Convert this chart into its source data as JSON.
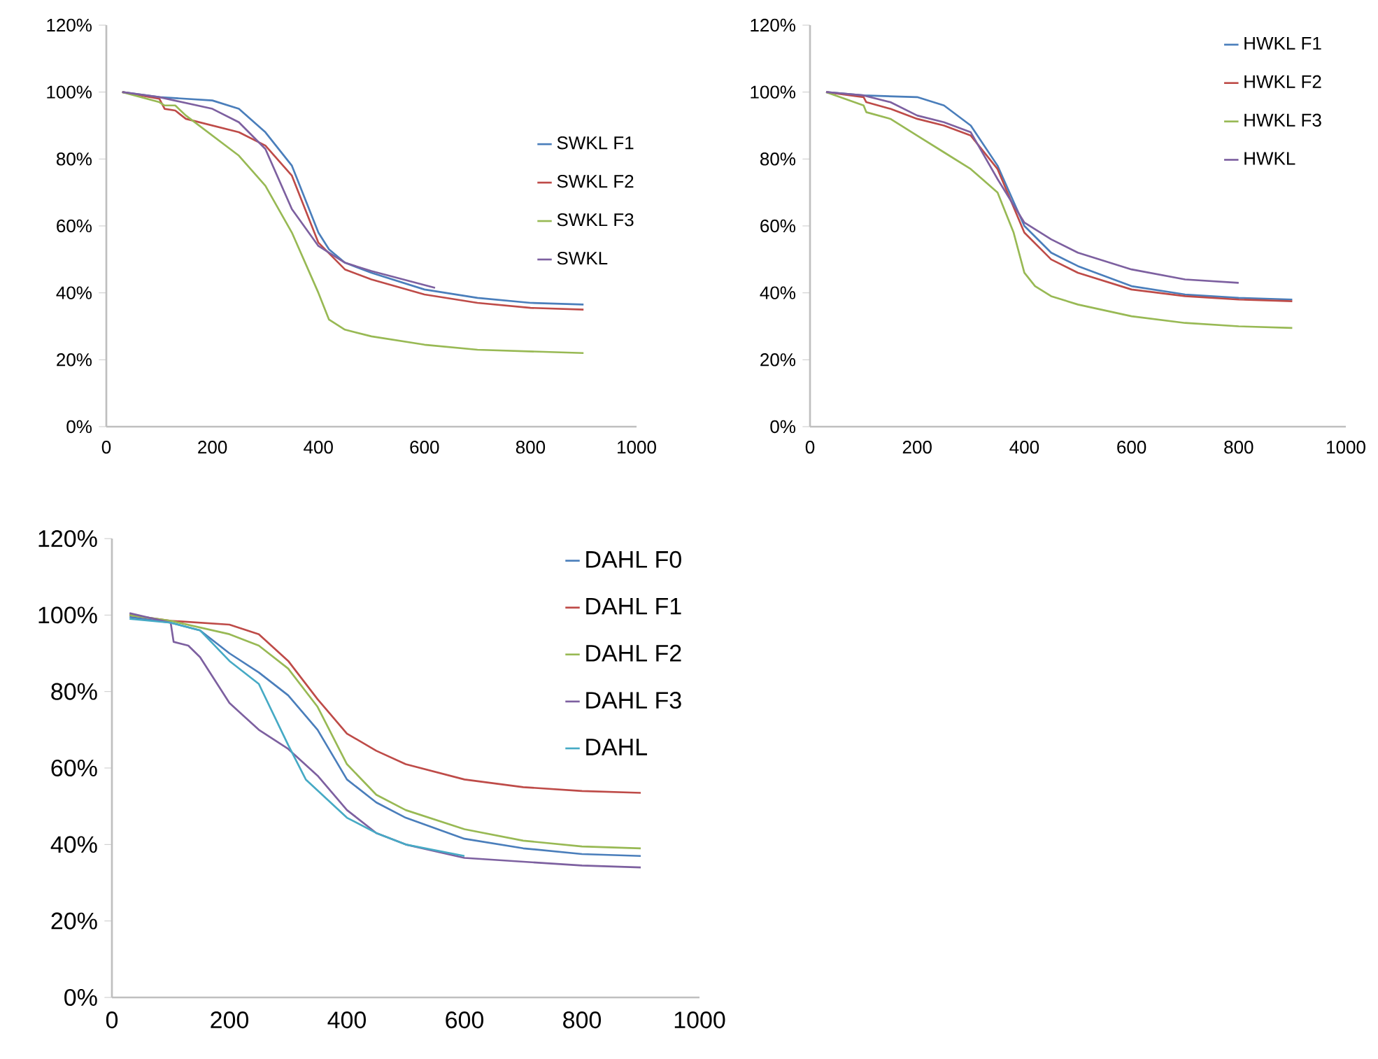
{
  "chart_data": [
    {
      "type": "line",
      "xlim": [
        0,
        1000
      ],
      "xticks": [
        0,
        200,
        400,
        600,
        800,
        1000
      ],
      "ylim": [
        0,
        120
      ],
      "yticks": [
        {
          "value": 0,
          "label": "0%"
        },
        {
          "value": 20,
          "label": "20%"
        },
        {
          "value": 40,
          "label": "40%"
        },
        {
          "value": 60,
          "label": "60%"
        },
        {
          "value": 80,
          "label": "80%"
        },
        {
          "value": 100,
          "label": "100%"
        },
        {
          "value": 120,
          "label": "120%"
        }
      ],
      "legend": "right",
      "grid": false,
      "series": [
        {
          "name": "SWKL F1",
          "color": "#4a7ebb",
          "x": [
            30,
            100,
            200,
            250,
            300,
            350,
            400,
            420,
            450,
            500,
            600,
            700,
            800,
            900
          ],
          "values": [
            100,
            98.5,
            97.5,
            95,
            88,
            78,
            58,
            53,
            49,
            46,
            41,
            38.5,
            37,
            36.5
          ]
        },
        {
          "name": "SWKL F2",
          "color": "#be4b48",
          "x": [
            30,
            100,
            110,
            130,
            150,
            200,
            250,
            300,
            350,
            400,
            450,
            500,
            600,
            700,
            800,
            900
          ],
          "values": [
            100,
            98,
            95,
            94.5,
            92,
            90,
            88,
            84,
            75,
            55,
            47,
            44,
            39.5,
            37,
            35.5,
            35
          ]
        },
        {
          "name": "SWKL F3",
          "color": "#98b954",
          "x": [
            30,
            100,
            110,
            130,
            150,
            200,
            250,
            300,
            350,
            400,
            420,
            450,
            500,
            600,
            700,
            800,
            900
          ],
          "values": [
            100,
            97,
            96,
            96,
            93,
            87,
            81,
            72,
            58,
            40,
            32,
            29,
            27,
            24.5,
            23,
            22.5,
            22
          ]
        },
        {
          "name": "SWKL",
          "color": "#7d60a0",
          "x": [
            30,
            100,
            200,
            250,
            300,
            350,
            400,
            450,
            500,
            620
          ],
          "values": [
            100,
            98.5,
            95,
            91,
            83,
            65,
            54,
            49,
            46.5,
            41.5
          ]
        }
      ]
    },
    {
      "type": "line",
      "xlim": [
        0,
        1000
      ],
      "xticks": [
        0,
        200,
        400,
        600,
        800,
        1000
      ],
      "ylim": [
        0,
        120
      ],
      "yticks": [
        {
          "value": 0,
          "label": "0%"
        },
        {
          "value": 20,
          "label": "20%"
        },
        {
          "value": 40,
          "label": "40%"
        },
        {
          "value": 60,
          "label": "60%"
        },
        {
          "value": 80,
          "label": "80%"
        },
        {
          "value": 100,
          "label": "100%"
        },
        {
          "value": 120,
          "label": "120%"
        }
      ],
      "legend": "top right",
      "grid": false,
      "series": [
        {
          "name": "HWKL F1",
          "color": "#4a7ebb",
          "x": [
            30,
            100,
            200,
            250,
            300,
            350,
            400,
            450,
            500,
            600,
            700,
            800,
            900
          ],
          "values": [
            100,
            99,
            98.5,
            96,
            90,
            78,
            60,
            52,
            48,
            42,
            39.5,
            38.5,
            38
          ]
        },
        {
          "name": "HWKL F2",
          "color": "#be4b48",
          "x": [
            30,
            100,
            105,
            150,
            200,
            250,
            300,
            350,
            400,
            450,
            500,
            600,
            700,
            800,
            900
          ],
          "values": [
            100,
            98.5,
            97,
            95,
            92,
            90,
            87,
            77,
            58,
            50,
            46,
            41,
            39,
            38,
            37.5
          ]
        },
        {
          "name": "HWKL F3",
          "color": "#98b954",
          "x": [
            30,
            100,
            105,
            150,
            200,
            250,
            300,
            350,
            380,
            400,
            420,
            450,
            500,
            600,
            700,
            800,
            900
          ],
          "values": [
            100,
            96,
            94,
            92,
            87,
            82,
            77,
            70,
            58,
            46,
            42,
            39,
            36.5,
            33,
            31,
            30,
            29.5
          ]
        },
        {
          "name": "HWKL",
          "color": "#7d60a0",
          "x": [
            30,
            100,
            150,
            200,
            250,
            300,
            350,
            400,
            450,
            500,
            600,
            700,
            800
          ],
          "values": [
            100,
            99,
            97,
            93,
            91,
            88,
            74,
            61,
            56,
            52,
            47,
            44,
            43
          ]
        }
      ]
    },
    {
      "type": "line",
      "xlim": [
        0,
        1000
      ],
      "xticks": [
        0,
        200,
        400,
        600,
        800,
        1000
      ],
      "ylim": [
        0,
        120
      ],
      "yticks": [
        {
          "value": 0,
          "label": "0%"
        },
        {
          "value": 20,
          "label": "20%"
        },
        {
          "value": 40,
          "label": "40%"
        },
        {
          "value": 60,
          "label": "60%"
        },
        {
          "value": 80,
          "label": "80%"
        },
        {
          "value": 100,
          "label": "100%"
        },
        {
          "value": 120,
          "label": "120%"
        }
      ],
      "legend": "top right",
      "grid": false,
      "series": [
        {
          "name": "DAHL F0",
          "color": "#4a7ebb",
          "x": [
            30,
            100,
            150,
            200,
            250,
            300,
            350,
            400,
            450,
            500,
            600,
            700,
            800,
            900
          ],
          "values": [
            99.5,
            98,
            96,
            90,
            85,
            79,
            70,
            57,
            51,
            47,
            41.5,
            39,
            37.5,
            37
          ]
        },
        {
          "name": "DAHL F1",
          "color": "#be4b48",
          "x": [
            30,
            100,
            200,
            250,
            300,
            350,
            400,
            450,
            500,
            600,
            700,
            800,
            900
          ],
          "values": [
            100,
            98.5,
            97.5,
            95,
            88,
            78,
            69,
            64.5,
            61,
            57,
            55,
            54,
            53.5
          ]
        },
        {
          "name": "DAHL F2",
          "color": "#98b954",
          "x": [
            30,
            100,
            200,
            250,
            300,
            350,
            400,
            450,
            500,
            600,
            700,
            800,
            900
          ],
          "values": [
            100,
            98.5,
            95,
            92,
            86,
            76,
            61,
            53,
            49,
            44,
            41,
            39.5,
            39
          ]
        },
        {
          "name": "DAHL F3",
          "color": "#7d60a0",
          "x": [
            30,
            100,
            105,
            130,
            150,
            200,
            250,
            300,
            350,
            400,
            450,
            500,
            600,
            700,
            800,
            900
          ],
          "values": [
            100.5,
            98,
            93,
            92,
            89,
            77,
            70,
            65,
            58,
            49,
            43,
            40,
            36.5,
            35.5,
            34.5,
            34
          ]
        },
        {
          "name": "DAHL",
          "color": "#46aac5",
          "x": [
            30,
            100,
            150,
            200,
            250,
            300,
            330,
            400,
            450,
            500,
            600
          ],
          "values": [
            99,
            98,
            96,
            88,
            82,
            66,
            57,
            47,
            43,
            40,
            37
          ]
        }
      ]
    }
  ]
}
